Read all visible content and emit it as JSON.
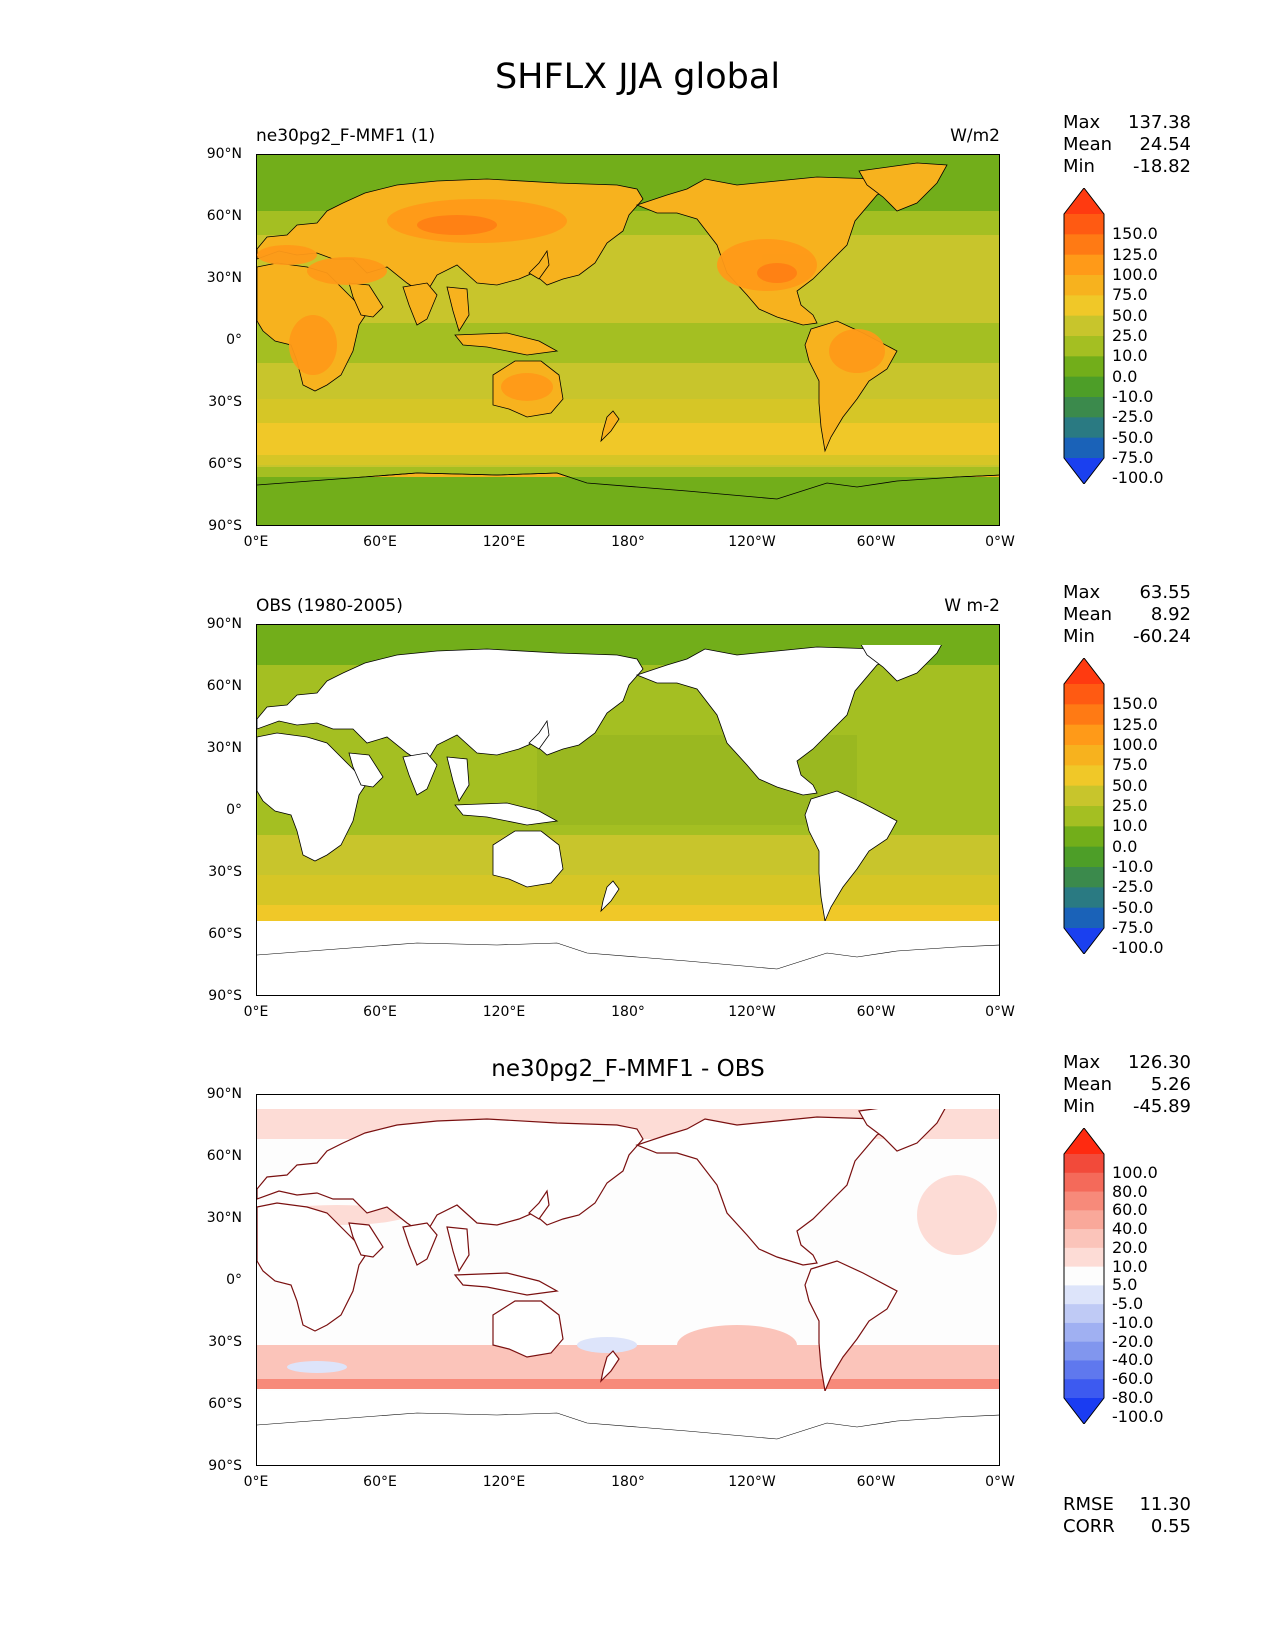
{
  "title": "SHFLX JJA global",
  "lat_ticks": [
    "90°N",
    "60°N",
    "30°N",
    "0°",
    "30°S",
    "60°S",
    "90°S"
  ],
  "lon_ticks": [
    "0°E",
    "60°E",
    "120°E",
    "180°",
    "120°W",
    "60°W",
    "0°W"
  ],
  "panels": [
    {
      "title_left": "ne30pg2_F-MMF1 (1)",
      "title_right": "W/m2",
      "title_center": "",
      "stats": {
        "max_label": "Max",
        "max": "137.38",
        "mean_label": "Mean",
        "mean": "24.54",
        "min_label": "Min",
        "min": "-18.82"
      },
      "colorbar_labels": [
        "150.0",
        "125.0",
        "100.0",
        "75.0",
        "50.0",
        "25.0",
        "10.0",
        "0.0",
        "-10.0",
        "-25.0",
        "-50.0",
        "-75.0",
        "-100.0"
      ],
      "colorbar_colors": [
        "#ff3a10",
        "#ff5a12",
        "#ff7a14",
        "#ff9a18",
        "#f7b21e",
        "#f0c828",
        "#c8c52c",
        "#a4bf22",
        "#72ae1a",
        "#4d9e28",
        "#3b8a4c",
        "#2a7a82",
        "#1a62b8",
        "#1a40f0"
      ]
    },
    {
      "title_left": "OBS (1980-2005)",
      "title_right": "W m-2",
      "title_center": "",
      "stats": {
        "max_label": "Max",
        "max": "63.55",
        "mean_label": "Mean",
        "mean": "8.92",
        "min_label": "Min",
        "min": "-60.24"
      },
      "colorbar_labels": [
        "150.0",
        "125.0",
        "100.0",
        "75.0",
        "50.0",
        "25.0",
        "10.0",
        "0.0",
        "-10.0",
        "-25.0",
        "-50.0",
        "-75.0",
        "-100.0"
      ],
      "colorbar_colors": [
        "#ff3a10",
        "#ff5a12",
        "#ff7a14",
        "#ff9a18",
        "#f7b21e",
        "#f0c828",
        "#c8c52c",
        "#a4bf22",
        "#72ae1a",
        "#4d9e28",
        "#3b8a4c",
        "#2a7a82",
        "#1a62b8",
        "#1a40f0"
      ]
    },
    {
      "title_left": "",
      "title_right": "",
      "title_center": "ne30pg2_F-MMF1 - OBS",
      "stats": {
        "max_label": "Max",
        "max": "126.30",
        "mean_label": "Mean",
        "mean": "5.26",
        "min_label": "Min",
        "min": "-45.89"
      },
      "colorbar_labels": [
        "100.0",
        "80.0",
        "60.0",
        "40.0",
        "20.0",
        "10.0",
        "5.0",
        "-5.0",
        "-10.0",
        "-20.0",
        "-40.0",
        "-60.0",
        "-80.0",
        "-100.0"
      ],
      "colorbar_colors": [
        "#ff2a10",
        "#f24a3a",
        "#f46a5a",
        "#f78a7a",
        "#f9a89a",
        "#fbc4ba",
        "#fddcd6",
        "#fdfdfd",
        "#dde4fa",
        "#bfcaf5",
        "#a0b0f2",
        "#8196ee",
        "#5f78ee",
        "#3d5af0",
        "#1a3cf2"
      ],
      "rmse_label": "RMSE",
      "rmse": "11.30",
      "corr_label": "CORR",
      "corr": "0.55"
    }
  ]
}
